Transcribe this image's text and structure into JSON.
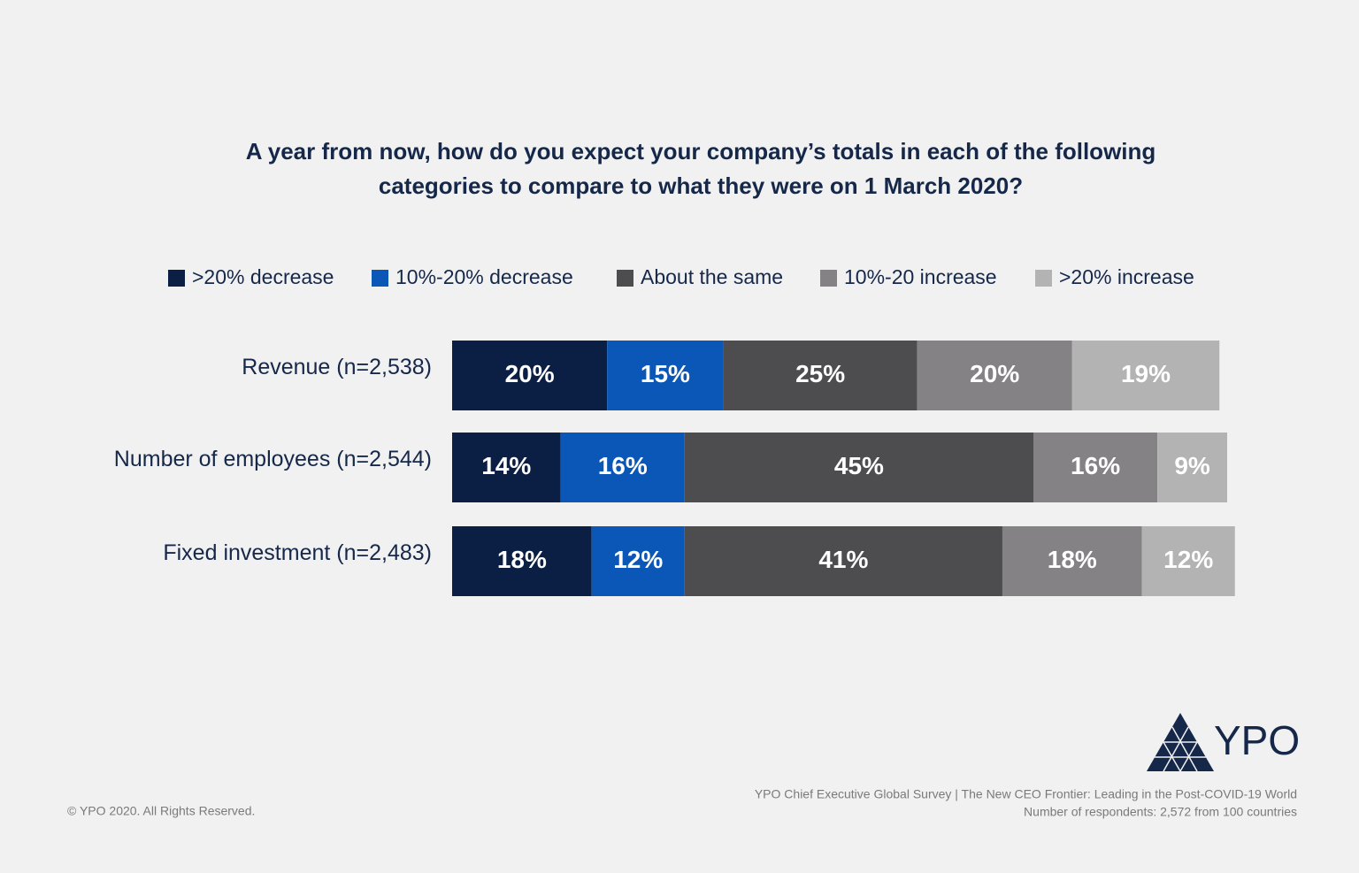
{
  "chart_data": {
    "type": "stacked-bar-horizontal",
    "title": [
      "A year from now, how do you expect your company’s totals in each of the following",
      "categories to compare to what they were on 1 March 2020?"
    ],
    "categories": [
      "Revenue (n=2,538)",
      "Number of employees (n=2,544)",
      "Fixed investment (n=2,483)"
    ],
    "series": [
      {
        "name": ">20% decrease",
        "color": "#0b1f45",
        "values": [
          20,
          14,
          18
        ],
        "value_labels": [
          "20%",
          "14%",
          "18%"
        ]
      },
      {
        "name": "10%-20% decrease",
        "color": "#0a57b8",
        "values": [
          15,
          16,
          12
        ],
        "value_labels": [
          "15%",
          "16%",
          "12%"
        ]
      },
      {
        "name": "About the same",
        "color": "#4d4d4f",
        "values": [
          25,
          45,
          41
        ],
        "value_labels": [
          "25%",
          "45%",
          "41%"
        ]
      },
      {
        "name": "10%-20 increase",
        "color": "#858285",
        "values": [
          20,
          16,
          18
        ],
        "value_labels": [
          "20%",
          "16%",
          "18%"
        ]
      },
      {
        "name": ">20% increase",
        "color": "#b3b3b3",
        "values": [
          19,
          9,
          12
        ],
        "value_labels": [
          "19%",
          "9%",
          "12%"
        ]
      }
    ],
    "xlim": [
      0,
      100
    ],
    "legend": "top",
    "logo": "YPO",
    "source": [
      "YPO Chief Executive Global Survey | The New CEO Frontier: Leading in the Post-COVID-19 World",
      "Number of respondents: 2,572 from 100 countries"
    ],
    "copyright": "© YPO 2020. All Rights Reserved."
  }
}
